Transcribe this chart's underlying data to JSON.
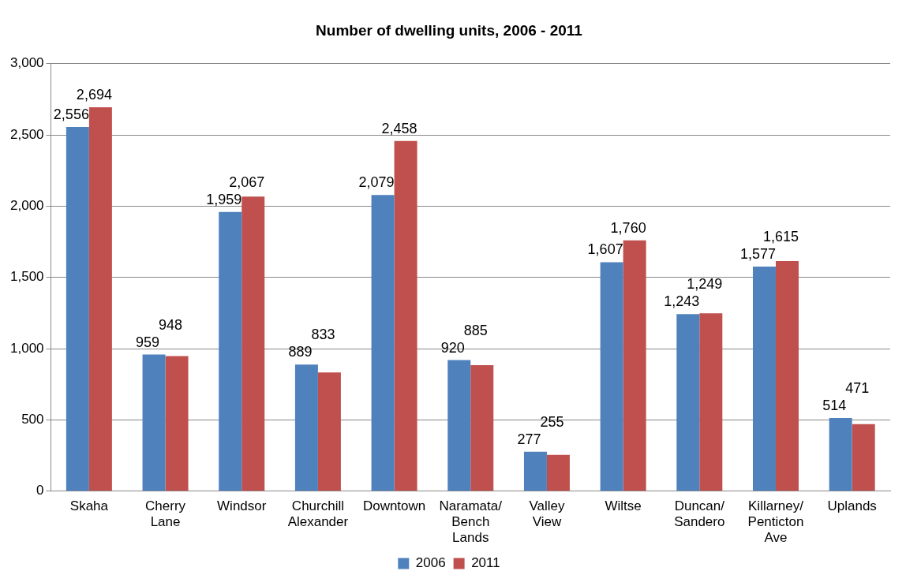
{
  "chart_data": {
    "type": "bar",
    "title": "Number of dwelling units, 2006 - 2011",
    "categories": [
      "Skaha",
      "Cherry Lane",
      "Windsor",
      "Churchill Alexander",
      "Downtown",
      "Naramata/ Bench Lands",
      "Valley View",
      "Wiltse",
      "Duncan/ Sandero",
      "Killarney/ Penticton Ave",
      "Uplands"
    ],
    "series": [
      {
        "name": "2006",
        "color": "#4f81bd",
        "values": [
          2556,
          959,
          1959,
          889,
          2079,
          920,
          277,
          1607,
          1243,
          1577,
          514
        ],
        "value_labels": [
          "2,556",
          "959",
          "1,959",
          "889",
          "2,079",
          "920",
          "277",
          "1,607",
          "1,243",
          "1,577",
          "514"
        ]
      },
      {
        "name": "2011",
        "color": "#c0504d",
        "values": [
          2694,
          948,
          2067,
          833,
          2458,
          885,
          255,
          1760,
          1249,
          1615,
          471
        ],
        "value_labels": [
          "2,694",
          "948",
          "2,067",
          "833",
          "2,458",
          "885",
          "255",
          "1,760",
          "1,249",
          "1,615",
          "471"
        ]
      }
    ],
    "ylim": [
      0,
      3000
    ],
    "yticks": [
      {
        "value": 0,
        "label": "0"
      },
      {
        "value": 500,
        "label": "500"
      },
      {
        "value": 1000,
        "label": "1,000"
      },
      {
        "value": 1500,
        "label": "1,500"
      },
      {
        "value": 2000,
        "label": "2,000"
      },
      {
        "value": 2500,
        "label": "2,500"
      },
      {
        "value": 3000,
        "label": "3,000"
      }
    ],
    "grid": "y",
    "legend": "bottom"
  }
}
